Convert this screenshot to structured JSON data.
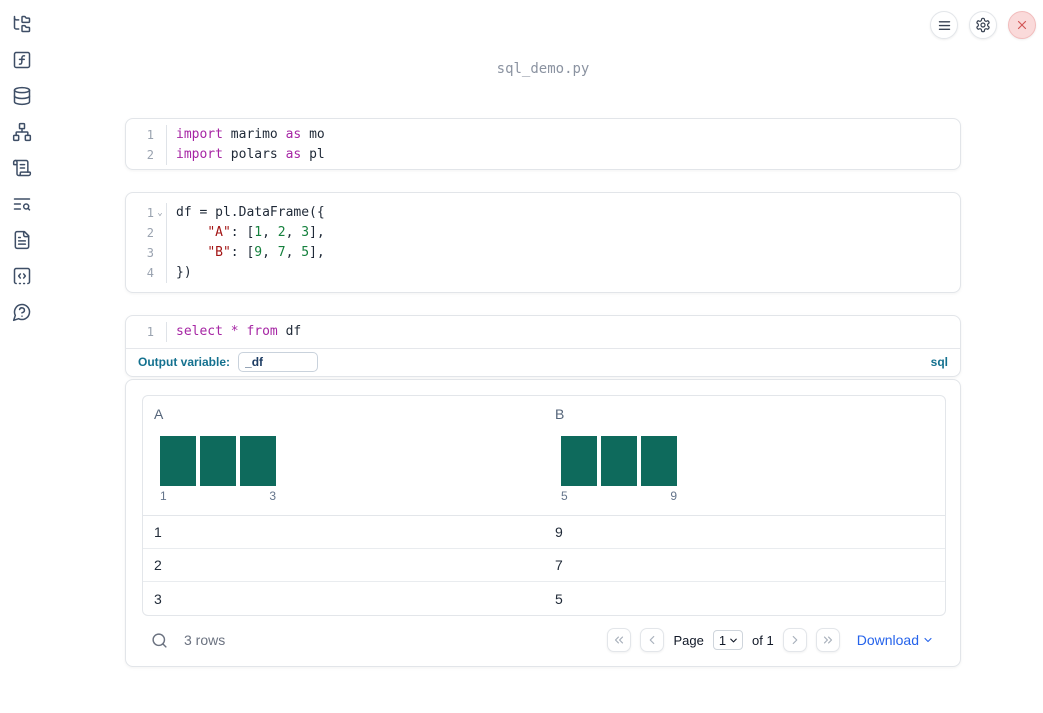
{
  "window": {
    "filename": "sql_demo.py"
  },
  "sidebar": {
    "items": [
      {
        "label": "file-explorer"
      },
      {
        "label": "variables"
      },
      {
        "label": "data-sources"
      },
      {
        "label": "dependencies"
      },
      {
        "label": "scratchpad"
      },
      {
        "label": "logs"
      },
      {
        "label": "documentation"
      },
      {
        "label": "snippets"
      },
      {
        "label": "help"
      }
    ]
  },
  "cells": [
    {
      "type": "python",
      "lines": [
        {
          "number": "1",
          "tokens": [
            [
              "import",
              "keyword"
            ],
            [
              " marimo ",
              "plain"
            ],
            [
              "as",
              "keyword"
            ],
            [
              " mo",
              "plain"
            ]
          ]
        },
        {
          "number": "2",
          "tokens": [
            [
              "import",
              "keyword"
            ],
            [
              " polars ",
              "plain"
            ],
            [
              "as",
              "keyword"
            ],
            [
              " pl",
              "plain"
            ]
          ]
        }
      ]
    },
    {
      "type": "python",
      "lines": [
        {
          "number": "1",
          "fold": true,
          "tokens": [
            [
              "df = pl.DataFrame({",
              "plain"
            ]
          ]
        },
        {
          "number": "2",
          "tokens": [
            [
              "    ",
              "plain"
            ],
            [
              "\"A\"",
              "string"
            ],
            [
              ": [",
              "plain"
            ],
            [
              "1",
              "number"
            ],
            [
              ", ",
              "plain"
            ],
            [
              "2",
              "number"
            ],
            [
              ", ",
              "plain"
            ],
            [
              "3",
              "number"
            ],
            [
              "],",
              "plain"
            ]
          ]
        },
        {
          "number": "3",
          "tokens": [
            [
              "    ",
              "plain"
            ],
            [
              "\"B\"",
              "string"
            ],
            [
              ": [",
              "plain"
            ],
            [
              "9",
              "number"
            ],
            [
              ", ",
              "plain"
            ],
            [
              "7",
              "number"
            ],
            [
              ", ",
              "plain"
            ],
            [
              "5",
              "number"
            ],
            [
              "],",
              "plain"
            ]
          ]
        },
        {
          "number": "4",
          "tokens": [
            [
              "})",
              "plain"
            ]
          ]
        }
      ]
    },
    {
      "type": "sql",
      "lines": [
        {
          "number": "1",
          "tokens": [
            [
              "select",
              "keyword"
            ],
            [
              " ",
              "plain"
            ],
            [
              "*",
              "keyword"
            ],
            [
              " ",
              "plain"
            ],
            [
              "from",
              "keyword"
            ],
            [
              " df",
              "plain"
            ]
          ]
        }
      ],
      "output_variable_label": "Output variable:",
      "output_variable_value": "_df",
      "language_badge": "sql"
    }
  ],
  "table": {
    "columns": [
      {
        "label": "A",
        "histogram": {
          "bins": 3,
          "bar_heights": [
            1,
            1,
            1
          ],
          "min_label": "1",
          "max_label": "3"
        }
      },
      {
        "label": "B",
        "histogram": {
          "bins": 3,
          "bar_heights": [
            1,
            1,
            1
          ],
          "min_label": "5",
          "max_label": "9"
        }
      }
    ],
    "rows": [
      [
        "1",
        "9"
      ],
      [
        "2",
        "7"
      ],
      [
        "3",
        "5"
      ]
    ],
    "footer": {
      "row_count": "3 rows",
      "page_label": "Page",
      "page_value": "1",
      "of_label": "of 1",
      "download_label": "Download"
    }
  },
  "colors": {
    "histogram_teal": "#0e6a5c",
    "keyword_purple": "#a626a4",
    "string_red": "#a31515",
    "number_green": "#15803d",
    "accent_blue": "#2563eb",
    "sql_label_teal": "#14718f",
    "close_red": "#d25555"
  }
}
